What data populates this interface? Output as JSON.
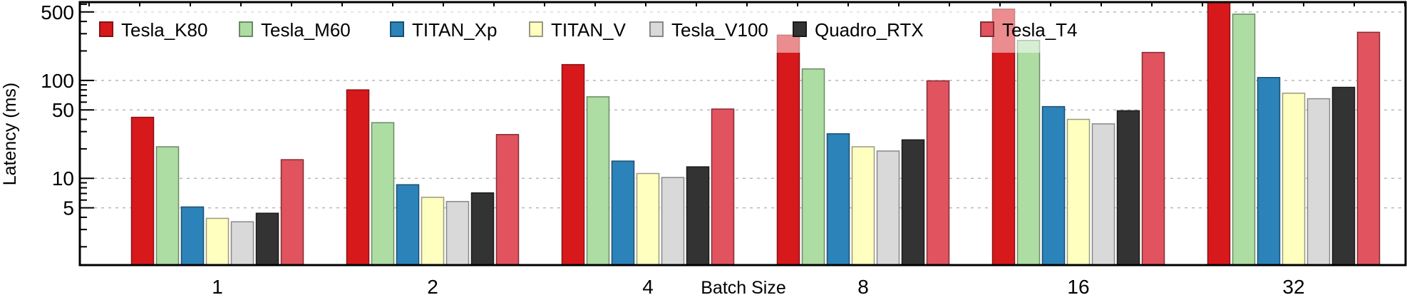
{
  "chart_data": {
    "type": "bar",
    "title": "",
    "xlabel": "Batch Size",
    "ylabel": "Latency (ms)",
    "yscale": "log",
    "ylim": [
      1.3,
      630
    ],
    "yticks": [
      5,
      10,
      50,
      100,
      500
    ],
    "ytick_labels": [
      "5",
      "10",
      "50",
      "100",
      "500"
    ],
    "grid": "y-major-dotted",
    "legend_position": "top-left, inside, single row",
    "categories": [
      "1",
      "2",
      "4",
      "8",
      "16",
      "32"
    ],
    "series": [
      {
        "name": "Tesla_K80",
        "color": "#d7191c",
        "edge": "#8a1014",
        "values": [
          42,
          80,
          145,
          290,
          535,
          700
        ]
      },
      {
        "name": "Tesla_M60",
        "color": "#addda2",
        "edge": "#6a8a66",
        "values": [
          21,
          37,
          68,
          131,
          256,
          475
        ]
      },
      {
        "name": "TITAN_Xp",
        "color": "#2b83ba",
        "edge": "#1c4f70",
        "values": [
          5.1,
          8.6,
          15,
          28.5,
          54,
          107
        ]
      },
      {
        "name": "TITAN_V",
        "color": "#ffffbf",
        "edge": "#999980",
        "values": [
          3.9,
          6.4,
          11.2,
          21,
          40,
          74
        ]
      },
      {
        "name": "Tesla_V100",
        "color": "#d9d9d9",
        "edge": "#888888",
        "values": [
          3.6,
          5.8,
          10.2,
          19,
          36,
          65
        ]
      },
      {
        "name": "Quadro_RTX",
        "color": "#333333",
        "edge": "#1a1a1a",
        "values": [
          4.4,
          7.1,
          13.1,
          24.7,
          49,
          85
        ]
      },
      {
        "name": "Tesla_T4",
        "color": "#e0535f",
        "edge": "#842c34",
        "values": [
          15.5,
          28,
          51,
          99,
          193,
          310
        ]
      }
    ]
  }
}
